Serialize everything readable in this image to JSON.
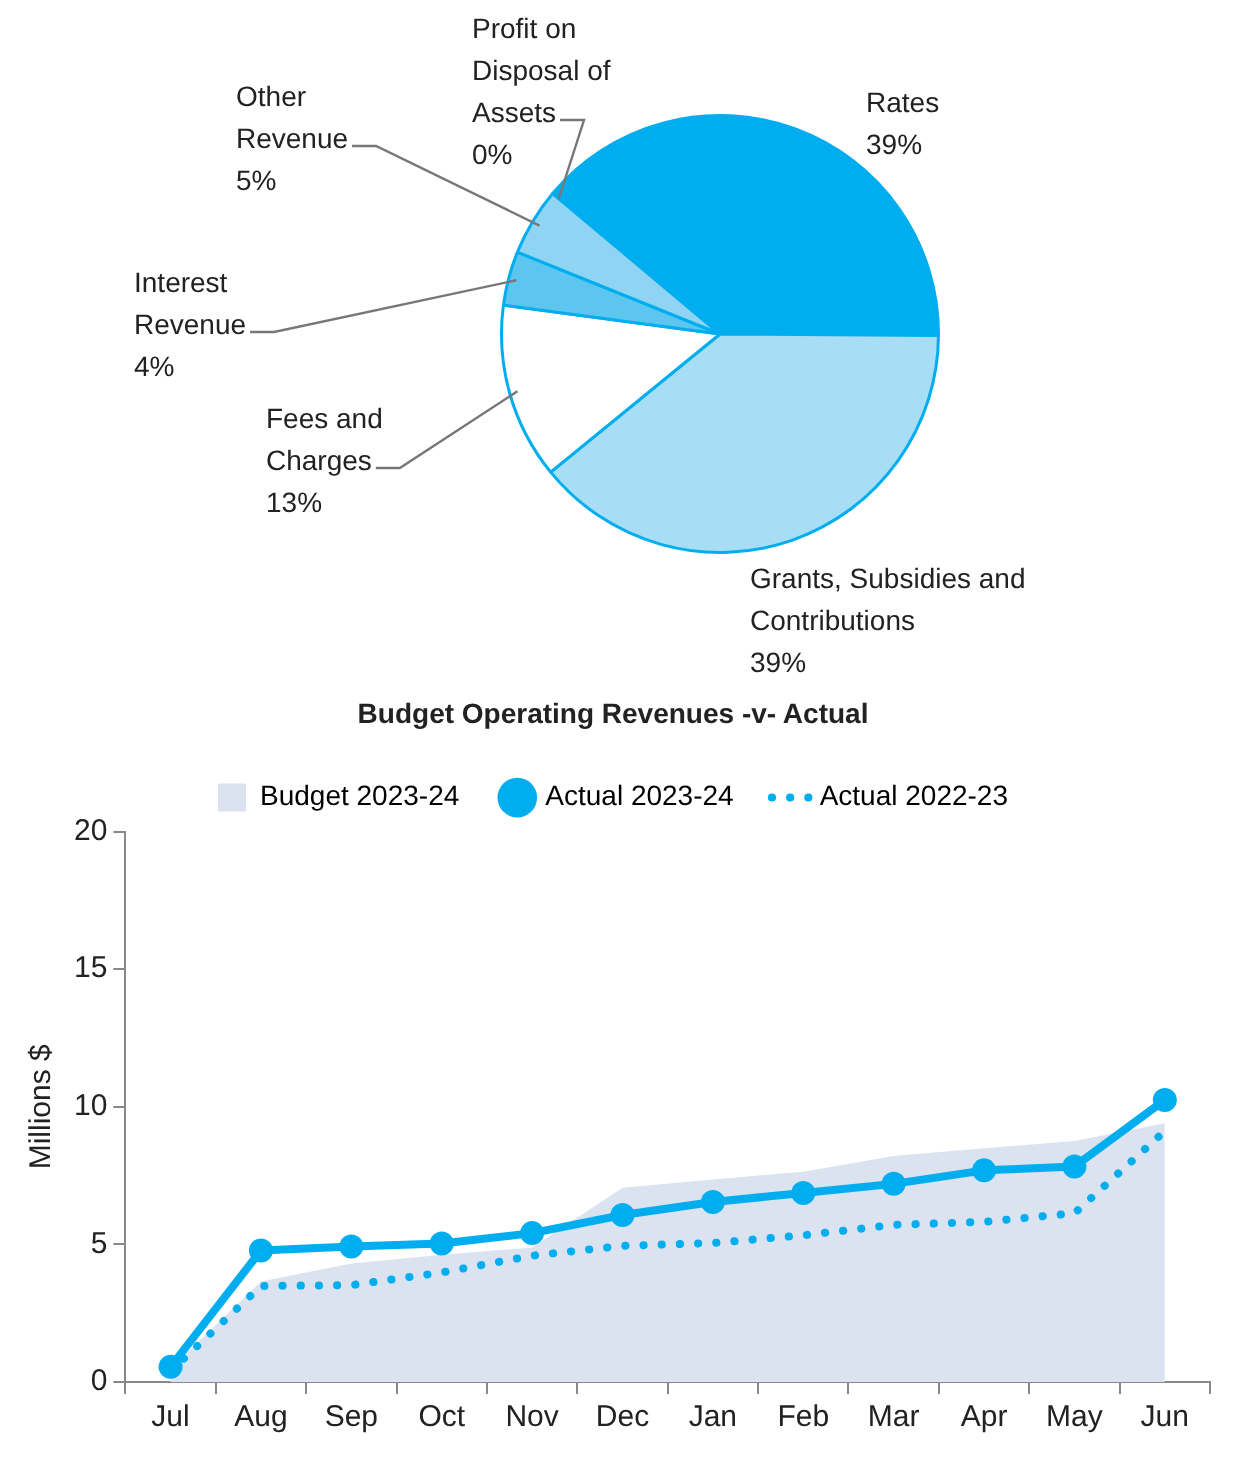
{
  "chart_data": [
    {
      "type": "pie",
      "categories": [
        "Rates",
        "Grants, Subsidies and Contributions",
        "Fees and Charges",
        "Interest Revenue",
        "Other Revenue",
        "Profit on Disposal of Assets"
      ],
      "values": [
        39,
        39,
        13,
        4,
        5,
        0
      ],
      "colors": [
        "#00aeef",
        "#a8def5",
        "#ffffff",
        "#5cc6f0",
        "#8fd5f3",
        "#00aeef"
      ],
      "value_labels": [
        "39%",
        "39%",
        "13%",
        "4%",
        "5%",
        "0%"
      ],
      "legend": false
    },
    {
      "type": "line",
      "title": "Budget Operating Revenues -v- Actual",
      "ylabel": "Millions $",
      "categories": [
        "Jul",
        "Aug",
        "Sep",
        "Oct",
        "Nov",
        "Dec",
        "Jan",
        "Feb",
        "Mar",
        "Apr",
        "May",
        "Jun"
      ],
      "series": [
        {
          "name": "Budget 2023-24",
          "type": "area",
          "color": "#dce3f0",
          "values": [
            0.5,
            3.65,
            4.31,
            4.62,
            4.89,
            7.06,
            7.36,
            7.64,
            8.21,
            8.49,
            8.76,
            9.4
          ]
        },
        {
          "name": "Actual 2023-24",
          "type": "line",
          "color": "#00aeef",
          "marker": "circle",
          "line_style": "solid",
          "values": [
            0.55,
            4.78,
            4.92,
            5.03,
            5.41,
            6.07,
            6.54,
            6.87,
            7.2,
            7.69,
            7.83,
            10.25
          ]
        },
        {
          "name": "Actual 2022-23",
          "type": "line",
          "color": "#00aeef",
          "marker": "none",
          "line_style": "dotted",
          "values": [
            0.4,
            3.49,
            3.52,
            3.98,
            4.59,
            4.95,
            5.05,
            5.33,
            5.71,
            5.82,
            6.13,
            9.12
          ]
        }
      ],
      "ylim": [
        0,
        20
      ],
      "yticks": [
        0,
        5,
        10,
        15,
        20
      ],
      "grid": false,
      "legend": "top"
    }
  ]
}
